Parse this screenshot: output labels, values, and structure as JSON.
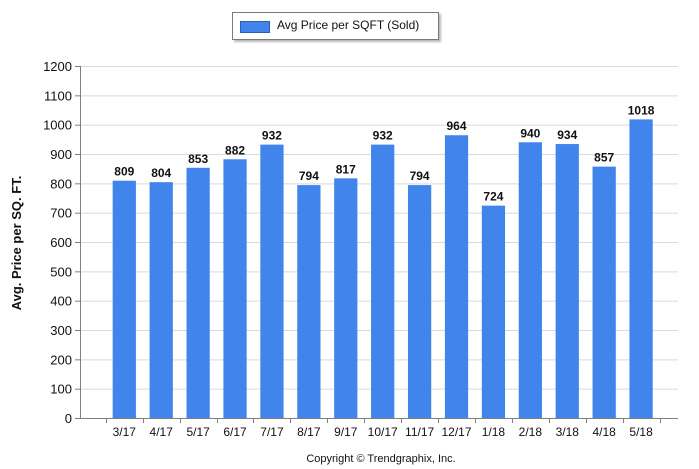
{
  "chart_data": {
    "type": "bar",
    "categories": [
      "3/17",
      "4/17",
      "5/17",
      "6/17",
      "7/17",
      "8/17",
      "9/17",
      "10/17",
      "11/17",
      "12/17",
      "1/18",
      "2/18",
      "3/18",
      "4/18",
      "5/18"
    ],
    "series": [
      {
        "name": "Avg Price per SQFT (Sold)",
        "values": [
          809,
          804,
          853,
          882,
          932,
          794,
          817,
          932,
          794,
          964,
          724,
          940,
          934,
          857,
          1018
        ]
      }
    ],
    "ylabel": "Avg. Price per SQ. FT.",
    "ylim": [
      0,
      1200
    ],
    "yticks": [
      0,
      100,
      200,
      300,
      400,
      500,
      600,
      700,
      800,
      900,
      1000,
      1100,
      1200
    ],
    "grid": true,
    "legend_position": "top-center",
    "data_labels": true,
    "colors": {
      "bar": "#4185ec",
      "grid": "#d9d9d9",
      "axis": "#808080"
    }
  },
  "footer": {
    "copyright": "Copyright © Trendgraphix, Inc."
  }
}
